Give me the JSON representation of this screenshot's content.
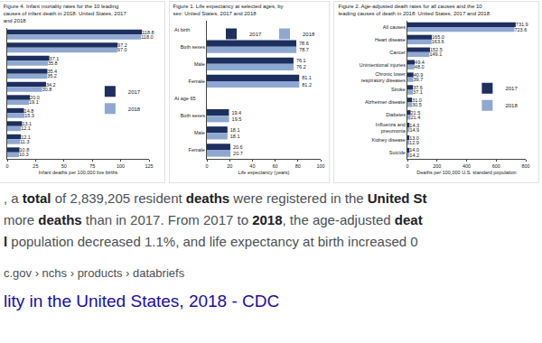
{
  "chart_data": [
    {
      "type": "bar",
      "orientation": "horizontal",
      "title": "Figure 4. Infant mortality rates for the 10 leading causes of infant death in 2018: United States, 2017 and 2018",
      "xlabel": "Infant deaths per 100,000 live births",
      "categories": [
        null,
        null,
        null,
        null,
        null,
        null,
        null,
        null,
        null,
        null
      ],
      "series": [
        {
          "name": "2017",
          "color": "#1c2f5f",
          "values": [
            118.8,
            97.2,
            37.1,
            35.4,
            34.2,
            20.0,
            14.8,
            13.1,
            12.1,
            10.8
          ],
          "value_labels": [
            "118.8",
            "97.2",
            "37.1",
            "35.4",
            "34.2",
            "20.0",
            "14.8",
            "13.1",
            "12.1",
            "10.8"
          ]
        },
        {
          "name": "2018",
          "color": "#8fa8d2",
          "values": [
            118.0,
            97.0,
            35.8,
            35.2,
            30.8,
            19.1,
            15.3,
            12.1,
            11.3,
            10.3
          ],
          "value_labels": [
            "118.0",
            "97.0",
            "35.8",
            "35.2",
            "30.8",
            "19.1",
            "15.3",
            "12.1",
            "11.3",
            "10.3"
          ]
        }
      ],
      "xlim": [
        0,
        125
      ],
      "xticks": [
        0,
        25,
        50,
        75,
        100,
        125
      ],
      "grid": false,
      "legend": "right",
      "data_labels": true
    },
    {
      "type": "bar",
      "orientation": "horizontal",
      "title": "Figure 1. Life expectancy at selected ages, by sex: United States, 2017 and 2018",
      "xlabel": "Life expectancy (years)",
      "categories": [
        null,
        "Both sexes",
        "Male",
        "Female",
        null,
        "Both sexes",
        "Male",
        "Female"
      ],
      "annotations": [
        {
          "text": "At birth",
          "category": 0
        },
        {
          "text": "At age 65",
          "category": 4
        }
      ],
      "series": [
        {
          "name": "2017",
          "color": "#1c2f5f",
          "values": [
            null,
            78.6,
            76.1,
            81.1,
            null,
            19.4,
            18.1,
            20.6
          ],
          "value_labels": [
            null,
            "78.6",
            "76.1",
            "81.1",
            null,
            "19.4",
            "18.1",
            "20.6"
          ]
        },
        {
          "name": "2018",
          "color": "#8fa8d2",
          "values": [
            null,
            78.7,
            76.2,
            81.2,
            null,
            19.5,
            18.1,
            20.7
          ],
          "value_labels": [
            null,
            "78.7",
            "76.2",
            "81.2",
            null,
            "19.5",
            "18.1",
            "20.7"
          ]
        }
      ],
      "xlim": [
        0,
        100
      ],
      "xticks": [
        0,
        20,
        40,
        60,
        80,
        100
      ],
      "grid": false,
      "legend": "top right",
      "data_labels": true
    },
    {
      "type": "bar",
      "orientation": "horizontal",
      "title": "Figure 2. Age-adjusted death rates for all causes and the 10 leading causes of death in 2018: United States, 2017 and 2018",
      "xlabel": "Deaths per 100,000 U.S. standard population",
      "categories": [
        "All causes",
        "Heart disease",
        "Cancer",
        "Unintentional injuries",
        "Chronic lower respiratory diseases",
        "Stroke",
        "Alzheimer disease",
        "Diabetes",
        "Influenza and pneumonia",
        "Kidney disease",
        "Suicide"
      ],
      "series": [
        {
          "name": "2017",
          "color": "#1c2f5f",
          "values": [
            731.9,
            165.0,
            152.5,
            49.4,
            40.9,
            37.6,
            31.0,
            21.5,
            14.3,
            13.0,
            14.0
          ],
          "value_labels": [
            "731.9",
            "165.0",
            "152.5",
            "49.4",
            "40.9",
            "37.6",
            "31.0",
            "21.5",
            "14.3",
            "13.0",
            "14.0"
          ]
        },
        {
          "name": "2018",
          "color": "#8fa8d2",
          "values": [
            723.6,
            163.6,
            149.1,
            48.0,
            39.7,
            37.1,
            30.5,
            21.4,
            14.9,
            12.9,
            14.2
          ],
          "value_labels": [
            "723.6",
            "163.6",
            "149.1",
            "48.0",
            "39.7",
            "37.1",
            "30.5",
            "21.4",
            "14.9",
            "12.9",
            "14.2"
          ]
        }
      ],
      "xlim": [
        0,
        800
      ],
      "xticks": [
        0,
        200,
        400,
        600,
        800
      ],
      "grid": false,
      "legend": "right",
      "data_labels": true
    }
  ],
  "snippet": {
    "lines": [
      [
        {
          "text": ", a ",
          "bold": false
        },
        {
          "text": "total",
          "bold": true
        },
        {
          "text": " of 2,839,205 resident ",
          "bold": false
        },
        {
          "text": "deaths",
          "bold": true
        },
        {
          "text": " were registered in the ",
          "bold": false
        },
        {
          "text": "United St",
          "bold": true
        }
      ],
      [
        {
          "text": "more ",
          "bold": false
        },
        {
          "text": "deaths",
          "bold": true
        },
        {
          "text": " than in 2017. From 2017 to ",
          "bold": false
        },
        {
          "text": "2018",
          "bold": true
        },
        {
          "text": ", the age-adjusted ",
          "bold": false
        },
        {
          "text": "deat",
          "bold": true
        }
      ],
      [
        {
          "text": "l",
          "bold": true
        },
        {
          "text": " population decreased 1.1%, and life expectancy at birth increased 0",
          "bold": false
        }
      ]
    ],
    "url": "c.gov › nchs › products › databriefs",
    "link": "lity in the United States, 2018 - CDC"
  }
}
